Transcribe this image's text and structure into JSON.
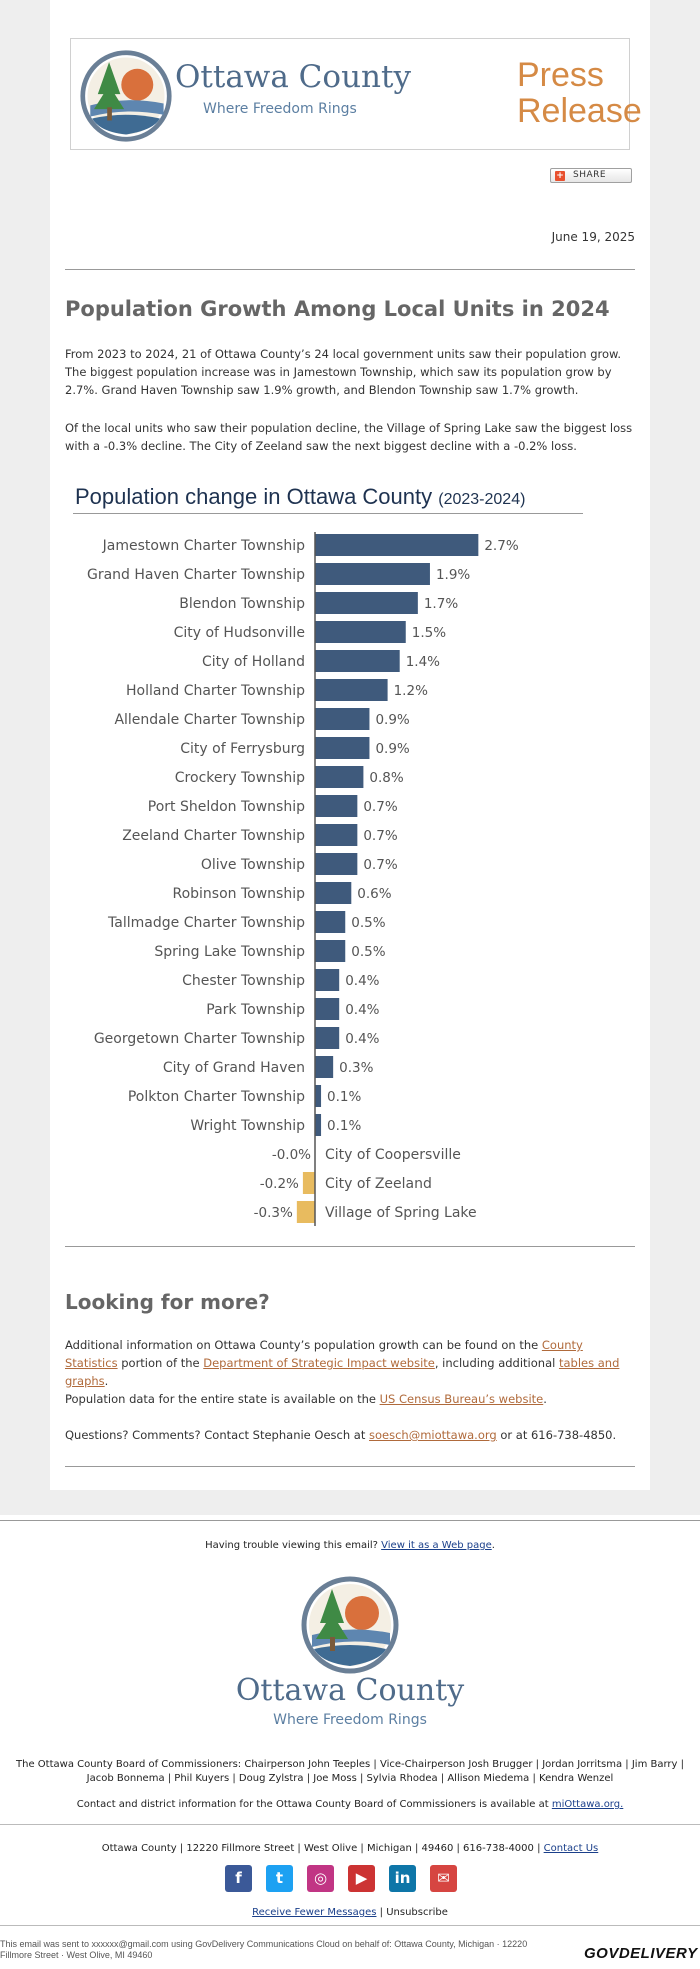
{
  "header": {
    "logo_name": "Ottawa County",
    "logo_tagline": "Where Freedom Rings",
    "press_line1": "Press",
    "press_line2": "Release",
    "share_label": "SHARE",
    "date": "June 19, 2025"
  },
  "article": {
    "title": "Population Growth Among Local Units in 2024",
    "para1": "From 2023 to 2024, 21 of Ottawa County’s 24 local government units saw their population grow. The biggest population increase was in Jamestown Township, which saw its population grow by 2.7%. Grand Haven Township saw 1.9% growth, and Blendon Township saw 1.7% growth.",
    "para2": "Of the local units who saw their population decline, the Village of Spring Lake saw the biggest loss with a -0.3% decline. The City of Zeeland saw the next biggest decline with a -0.2% loss."
  },
  "chart_data": {
    "type": "bar",
    "orientation": "horizontal",
    "title": "Population change in Ottawa County",
    "subtitle": "(2023-2024)",
    "categories": [
      "Jamestown Charter Township",
      "Grand Haven Charter Township",
      "Blendon Township",
      "City of Hudsonville",
      "City of Holland",
      "Holland Charter Township",
      "Allendale Charter Township",
      "City of Ferrysburg",
      "Crockery Township",
      "Port Sheldon Township",
      "Zeeland Charter Township",
      "Olive Township",
      "Robinson Township",
      "Tallmadge Charter Township",
      "Spring Lake Township",
      "Chester Township",
      "Park Township",
      "Georgetown Charter Township",
      "City of Grand Haven",
      "Polkton Charter Township",
      "Wright Township",
      "City of Coopersville",
      "City of Zeeland",
      "Village of Spring Lake"
    ],
    "values": [
      2.7,
      1.9,
      1.7,
      1.5,
      1.4,
      1.2,
      0.9,
      0.9,
      0.8,
      0.7,
      0.7,
      0.7,
      0.6,
      0.5,
      0.5,
      0.4,
      0.4,
      0.4,
      0.3,
      0.1,
      0.1,
      -0.0,
      -0.2,
      -0.3
    ],
    "value_labels": [
      "2.7%",
      "1.9%",
      "1.7%",
      "1.5%",
      "1.4%",
      "1.2%",
      "0.9%",
      "0.9%",
      "0.8%",
      "0.7%",
      "0.7%",
      "0.7%",
      "0.6%",
      "0.5%",
      "0.5%",
      "0.4%",
      "0.4%",
      "0.4%",
      "0.3%",
      "0.1%",
      "0.1%",
      "-0.0%",
      "-0.2%",
      "-0.3%"
    ],
    "colors": {
      "positive": "#3f5a7c",
      "negative": "#e8bb5f",
      "axis": "#555555"
    },
    "xlim": [
      -0.3,
      2.7
    ],
    "grid": false,
    "legend": "none"
  },
  "more": {
    "title": "Looking for more?",
    "p1_a": "Additional information on Ottawa County’s population growth can be found on the ",
    "p1_link1": "County Statistics",
    "p1_b": " portion of the ",
    "p1_link2": "Department of Strategic Impact website",
    "p1_c": ", including additional ",
    "p1_link3": "tables and graphs",
    "p1_d": ".",
    "p2_a": "Population data for the entire state is available on the ",
    "p2_link": "US Census Bureau’s website",
    "p2_b": ".",
    "p3_a": "Questions? Comments? Contact Stephanie Oesch at ",
    "p3_link": "soesch@miottawa.org",
    "p3_b": " or at 616-738-4850."
  },
  "footer": {
    "trouble_text": "Having trouble viewing this email? ",
    "trouble_link": "View it as a Web page",
    "trouble_end": ".",
    "logo_name": "Ottawa County",
    "logo_tagline": "Where Freedom Rings",
    "board": "The Ottawa County Board of Commissioners: Chairperson John Teeples | Vice-Chairperson Josh Brugger | Jordan Jorritsma | Jim Barry | Jacob Bonnema | Phil Kuyers | Doug Zylstra | Joe Moss | Sylvia Rhodea | Allison Miedema | Kendra Wenzel",
    "contact_text": "Contact and district information for the Ottawa County Board of Commissioners is available at ",
    "contact_link": "miOttawa.org.",
    "address": "Ottawa County | 12220 Fillmore Street | West Olive | Michigan | 49460 | 616-738-4000 | ",
    "contact_us": "Contact Us",
    "social": [
      {
        "name": "facebook",
        "glyph": "f",
        "color": "#3b5998"
      },
      {
        "name": "twitter",
        "glyph": "t",
        "color": "#1da1f2"
      },
      {
        "name": "instagram",
        "glyph": "◎",
        "color": "#c13584"
      },
      {
        "name": "youtube",
        "glyph": "▶",
        "color": "#cc3333"
      },
      {
        "name": "linkedin",
        "glyph": "in",
        "color": "#0e76a8"
      },
      {
        "name": "email",
        "glyph": "✉",
        "color": "#d64541"
      }
    ],
    "fewer_link": "Receive Fewer Messages",
    "unsubscribe": " | Unsubscribe",
    "sent_text": "This email was sent to xxxxxx@gmail.com using GovDelivery Communications Cloud on behalf of: Ottawa County, Michigan · 12220 Fillmore Street · West Olive, MI 49460",
    "govdelivery": "GOVDELIVERY"
  }
}
